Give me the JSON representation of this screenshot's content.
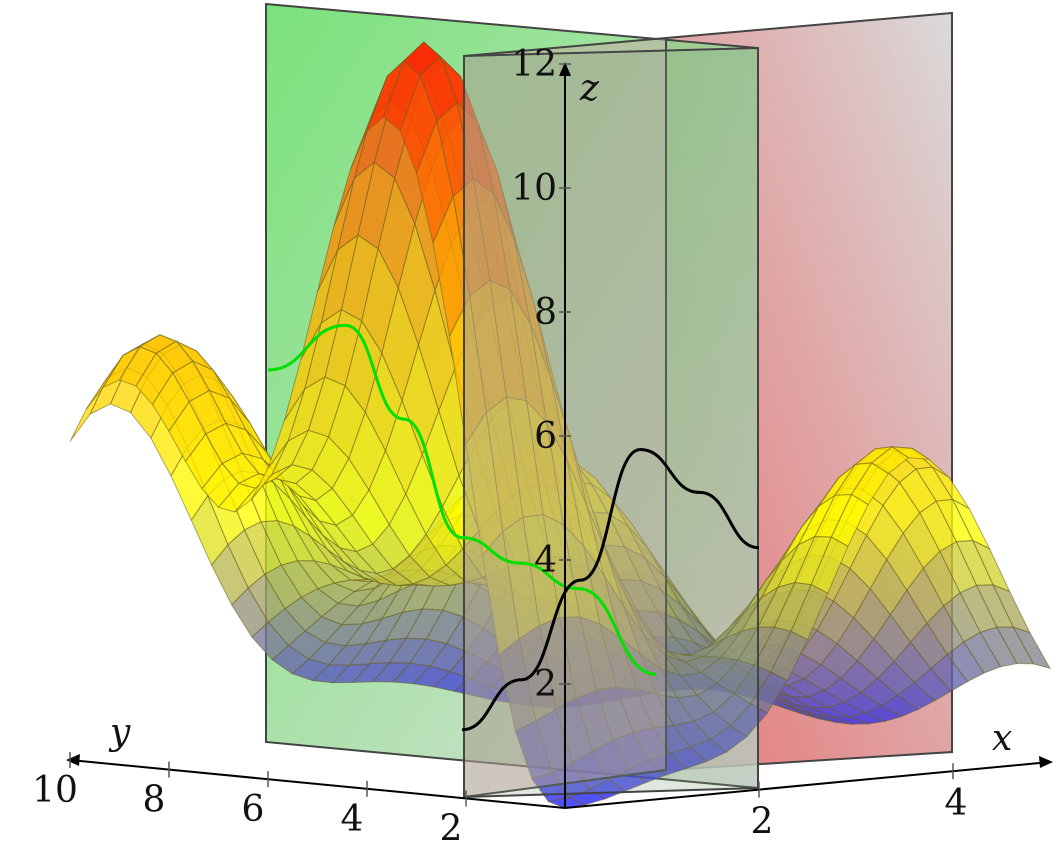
{
  "chart_data": {
    "type": "surface3d",
    "axes": {
      "x": {
        "label": "x",
        "ticks": [
          2,
          4
        ],
        "range": [
          0,
          5
        ]
      },
      "y": {
        "label": "y",
        "ticks": [
          2,
          4,
          6,
          8,
          10
        ],
        "range": [
          0,
          10
        ]
      },
      "z": {
        "label": "z",
        "ticks": [
          2,
          4,
          6,
          8,
          10,
          12
        ],
        "range": [
          0,
          12
        ]
      }
    },
    "surface": {
      "colormap": [
        "#1a1aff",
        "#ffff00",
        "#ffaa00",
        "#ff1a00"
      ],
      "peaks": [
        {
          "x": 0.4,
          "y": 3.6,
          "z": 12.0
        },
        {
          "x": 3.6,
          "y": 0.4,
          "z": 5.3
        },
        {
          "x": 0.4,
          "y": 9.0,
          "z": 6.8
        },
        {
          "x": 3.2,
          "y": 6.8,
          "z": 4.8
        }
      ],
      "minimum": {
        "x": 0,
        "y": 0,
        "z": 0
      }
    },
    "planes": [
      {
        "name": "x-plane",
        "color": "#d84c4c",
        "at_x": 2
      },
      {
        "name": "y-plane",
        "color": "#4cd84c",
        "at_y": 6
      }
    ],
    "curves": [
      {
        "color": "#00e000",
        "points": [
          {
            "t": 0.0,
            "z": 6.6
          },
          {
            "t": 0.2,
            "z": 7.2
          },
          {
            "t": 0.35,
            "z": 5.6
          },
          {
            "t": 0.5,
            "z": 3.6
          },
          {
            "t": 0.65,
            "z": 3.1
          },
          {
            "t": 0.8,
            "z": 2.6
          },
          {
            "t": 1.0,
            "z": 1.1
          }
        ]
      },
      {
        "color": "#000000",
        "points": [
          {
            "t": 0.0,
            "z": 0.5
          },
          {
            "t": 0.2,
            "z": 1.4
          },
          {
            "t": 0.4,
            "z": 3.1
          },
          {
            "t": 0.6,
            "z": 5.3
          },
          {
            "t": 0.8,
            "z": 4.7
          },
          {
            "t": 1.0,
            "z": 3.9
          }
        ]
      }
    ]
  }
}
